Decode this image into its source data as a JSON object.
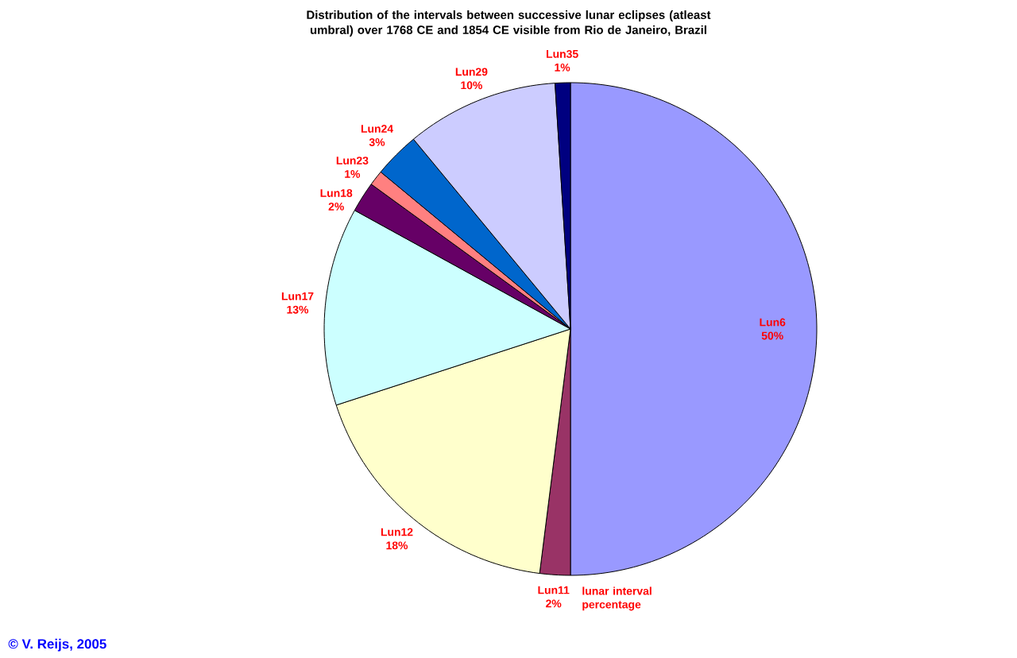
{
  "chart_data": {
    "type": "pie",
    "title": "Distribution of the intervals between successive lunar eclipses (atleast umbral) over 1768 CE and 1854 CE visible from Rio de Janeiro, Brazil",
    "categories": [
      "Lun6",
      "Lun11",
      "Lun12",
      "Lun17",
      "Lun18",
      "Lun23",
      "Lun24",
      "Lun29",
      "Lun35"
    ],
    "values": [
      50,
      2,
      18,
      13,
      2,
      1,
      3,
      10,
      1
    ],
    "value_labels": [
      "50%",
      "2%",
      "18%",
      "13%",
      "2%",
      "1%",
      "3%",
      "10%",
      "1%"
    ],
    "colors": [
      "#9999ff",
      "#993366",
      "#ffffcc",
      "#ccffff",
      "#660066",
      "#ff8080",
      "#0066cc",
      "#ccccff",
      "#000080"
    ],
    "annotations": [
      "© V. Reijs, 2005",
      "lunar interval percentage"
    ]
  }
}
